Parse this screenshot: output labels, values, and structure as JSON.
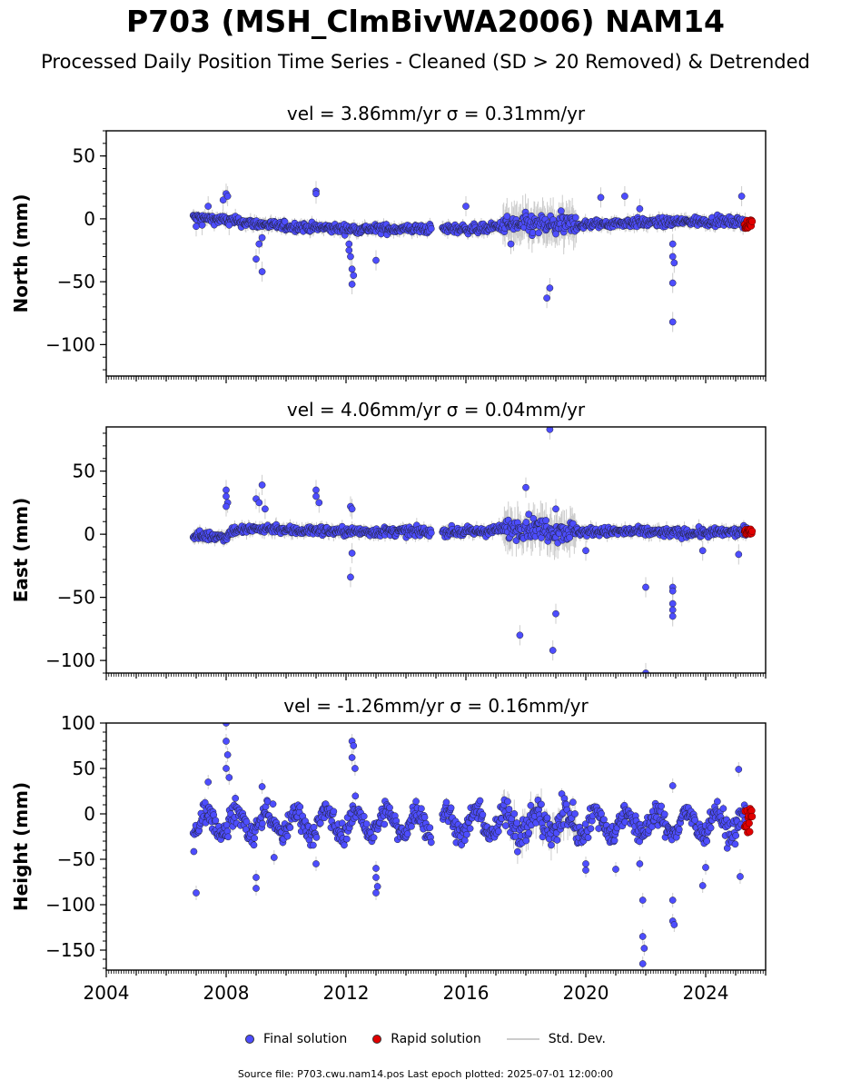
{
  "title": "P703 (MSH_ClmBivWA2006) NAM14",
  "subtitle": "Processed Daily Position Time Series - Cleaned (SD > 20 Removed) & Detrended",
  "legend": {
    "final": "Final solution",
    "rapid": "Rapid solution",
    "std": "Std. Dev."
  },
  "footer": "Source file: P703.cwu.nam14.pos  Last epoch plotted: 2025-07-01 12:00:00",
  "colors": {
    "final": "#4d4dff",
    "rapid": "#e00000",
    "std": "#cccccc",
    "edge": "#222233"
  },
  "chart_data": [
    {
      "type": "scatter",
      "title": "vel = 3.86mm/yr   σ = 0.31mm/yr",
      "ylabel": "North (mm)",
      "xlim": [
        2004,
        2026
      ],
      "ylim": [
        -125,
        70
      ],
      "yticks": [
        50,
        0,
        -50,
        -100
      ],
      "ytick_labels": [
        "50",
        "0",
        "−50",
        "−100"
      ],
      "baseline": [
        [
          2006.9,
          1
        ],
        [
          2008.0,
          -1
        ],
        [
          2009.0,
          -4
        ],
        [
          2010.0,
          -6
        ],
        [
          2011.0,
          -7
        ],
        [
          2012.0,
          -8
        ],
        [
          2013.0,
          -8
        ],
        [
          2014.0,
          -8
        ],
        [
          2014.9,
          -8
        ],
        [
          2015.2,
          -8
        ],
        [
          2016.5,
          -8
        ],
        [
          2017.5,
          -5
        ],
        [
          2018.5,
          -5
        ],
        [
          2019.5,
          -5
        ],
        [
          2020.5,
          -4
        ],
        [
          2021.5,
          -3
        ],
        [
          2022.5,
          -3
        ],
        [
          2023.5,
          -2
        ],
        [
          2024.5,
          -2
        ],
        [
          2025.4,
          -3
        ]
      ],
      "spread": 2.5,
      "gaps": [
        [
          2014.85,
          2015.2
        ]
      ],
      "noisy": [
        [
          2017.2,
          2019.7,
          6
        ]
      ],
      "outliers": [
        [
          2007.0,
          -6
        ],
        [
          2007.2,
          -5
        ],
        [
          2007.4,
          10
        ],
        [
          2007.9,
          15
        ],
        [
          2008.0,
          20
        ],
        [
          2008.05,
          18
        ],
        [
          2008.1,
          -5
        ],
        [
          2009.0,
          -32
        ],
        [
          2009.1,
          -20
        ],
        [
          2009.2,
          -42
        ],
        [
          2009.2,
          -15
        ],
        [
          2011.0,
          22
        ],
        [
          2011.0,
          20
        ],
        [
          2012.1,
          -20
        ],
        [
          2012.15,
          -30
        ],
        [
          2012.2,
          -40
        ],
        [
          2012.2,
          -52
        ],
        [
          2012.25,
          -45
        ],
        [
          2012.1,
          -25
        ],
        [
          2013.0,
          -33
        ],
        [
          2016.0,
          10
        ],
        [
          2017.5,
          -20
        ],
        [
          2018.7,
          -63
        ],
        [
          2018.8,
          -55
        ],
        [
          2019.0,
          -12
        ],
        [
          2020.5,
          17
        ],
        [
          2021.3,
          18
        ],
        [
          2021.8,
          8
        ],
        [
          2022.9,
          -20
        ],
        [
          2022.9,
          -30
        ],
        [
          2022.95,
          -35
        ],
        [
          2022.9,
          -51
        ],
        [
          2022.9,
          -82
        ],
        [
          2025.2,
          18
        ]
      ],
      "rapid": {
        "x_start": 2025.3,
        "x_end": 2025.55,
        "y_min": -8,
        "y_max": -1
      }
    },
    {
      "type": "scatter",
      "title": "vel = 4.06mm/yr   σ = 0.04mm/yr",
      "ylabel": "East (mm)",
      "xlim": [
        2004,
        2026
      ],
      "ylim": [
        -110,
        85
      ],
      "yticks": [
        50,
        0,
        -50,
        -100
      ],
      "ytick_labels": [
        "50",
        "0",
        "−50",
        "−100"
      ],
      "baseline": [
        [
          2006.9,
          -1
        ],
        [
          2008.0,
          -2
        ],
        [
          2008.2,
          3
        ],
        [
          2009.0,
          4
        ],
        [
          2009.7,
          5
        ],
        [
          2010.0,
          3
        ],
        [
          2011.0,
          3
        ],
        [
          2012.0,
          2
        ],
        [
          2013.0,
          2
        ],
        [
          2014.0,
          2
        ],
        [
          2014.9,
          2
        ],
        [
          2015.2,
          2
        ],
        [
          2016.5,
          2
        ],
        [
          2017.3,
          4
        ],
        [
          2018.0,
          6
        ],
        [
          2019.0,
          3
        ],
        [
          2020.0,
          2
        ],
        [
          2021.0,
          2
        ],
        [
          2022.0,
          2
        ],
        [
          2023.0,
          1
        ],
        [
          2024.0,
          1
        ],
        [
          2025.4,
          2
        ]
      ],
      "spread": 2.5,
      "gaps": [
        [
          2014.85,
          2015.2
        ]
      ],
      "noisy": [
        [
          2017.2,
          2019.7,
          6
        ]
      ],
      "outliers": [
        [
          2008.0,
          35
        ],
        [
          2008.0,
          30
        ],
        [
          2008.05,
          25
        ],
        [
          2008.0,
          22
        ],
        [
          2009.0,
          28
        ],
        [
          2009.1,
          25
        ],
        [
          2009.2,
          39
        ],
        [
          2009.3,
          20
        ],
        [
          2011.0,
          35
        ],
        [
          2011.0,
          30
        ],
        [
          2011.1,
          25
        ],
        [
          2012.15,
          22
        ],
        [
          2012.2,
          20
        ],
        [
          2012.2,
          -15
        ],
        [
          2012.15,
          -34
        ],
        [
          2018.0,
          37
        ],
        [
          2017.8,
          -80
        ],
        [
          2018.8,
          83
        ],
        [
          2018.9,
          -92
        ],
        [
          2019.0,
          -63
        ],
        [
          2019.0,
          20
        ],
        [
          2020.0,
          -13
        ],
        [
          2022.0,
          -42
        ],
        [
          2022.9,
          -42
        ],
        [
          2022.9,
          -45
        ],
        [
          2022.9,
          -55
        ],
        [
          2022.9,
          -60
        ],
        [
          2022.9,
          -65
        ],
        [
          2022.0,
          -110
        ],
        [
          2023.9,
          -13
        ],
        [
          2025.1,
          -16
        ]
      ],
      "rapid": {
        "x_start": 2025.3,
        "x_end": 2025.55,
        "y_min": 0,
        "y_max": 4
      }
    },
    {
      "type": "scatter",
      "title": "vel = -1.26mm/yr   σ = 0.16mm/yr",
      "ylabel": "Height (mm)",
      "xlim": [
        2004,
        2026
      ],
      "ylim": [
        -172,
        100
      ],
      "yticks": [
        100,
        50,
        0,
        -50,
        -100,
        -150
      ],
      "ytick_labels": [
        "100",
        "50",
        "0",
        "−50",
        "−100",
        "−150"
      ],
      "xticks": [
        2004,
        2008,
        2012,
        2016,
        2020,
        2024
      ],
      "xtick_labels": [
        "2004",
        "2008",
        "2012",
        "2016",
        "2020",
        "2024"
      ],
      "baseline": [
        [
          2006.9,
          -10
        ],
        [
          2025.4,
          -10
        ]
      ],
      "spread": 9,
      "seasonal_amplitude": 13,
      "gaps": [
        [
          2014.85,
          2015.2
        ]
      ],
      "noisy": [
        [
          2017.2,
          2019.7,
          14
        ]
      ],
      "outliers": [
        [
          2007.0,
          -87
        ],
        [
          2007.4,
          35
        ],
        [
          2008.0,
          100
        ],
        [
          2008.0,
          80
        ],
        [
          2008.05,
          65
        ],
        [
          2008.0,
          50
        ],
        [
          2008.1,
          40
        ],
        [
          2009.0,
          -70
        ],
        [
          2009.0,
          -82
        ],
        [
          2009.2,
          30
        ],
        [
          2009.6,
          -48
        ],
        [
          2011.0,
          -55
        ],
        [
          2012.2,
          80
        ],
        [
          2012.25,
          75
        ],
        [
          2012.2,
          62
        ],
        [
          2012.3,
          50
        ],
        [
          2013.0,
          -60
        ],
        [
          2013.0,
          -70
        ],
        [
          2013.05,
          -80
        ],
        [
          2013.0,
          -87
        ],
        [
          2020.0,
          -55
        ],
        [
          2020.0,
          -62
        ],
        [
          2021.0,
          -61
        ],
        [
          2021.8,
          -55
        ],
        [
          2021.9,
          -95
        ],
        [
          2021.9,
          -135
        ],
        [
          2021.95,
          -148
        ],
        [
          2021.9,
          -165
        ],
        [
          2022.9,
          -95
        ],
        [
          2022.9,
          -118
        ],
        [
          2022.95,
          -122
        ],
        [
          2022.9,
          31
        ],
        [
          2023.9,
          -79
        ],
        [
          2024.0,
          -59
        ],
        [
          2025.1,
          49
        ],
        [
          2025.15,
          -69
        ]
      ],
      "rapid": {
        "x_start": 2025.3,
        "x_end": 2025.55,
        "y_min": -22,
        "y_max": 6
      }
    }
  ]
}
